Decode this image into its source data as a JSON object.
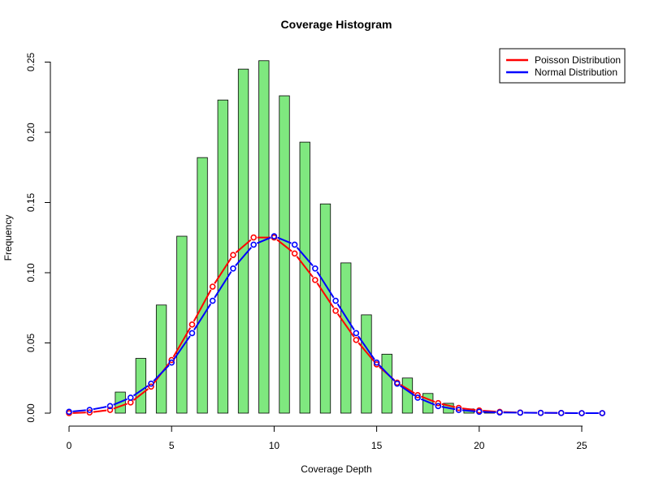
{
  "chart_data": {
    "type": "bar",
    "title": "Coverage Histogram",
    "xlabel": "Coverage Depth",
    "ylabel": "Frequency",
    "xlim": [
      0,
      26
    ],
    "ylim": [
      0,
      0.25
    ],
    "x_ticks": [
      0,
      5,
      10,
      15,
      20,
      25
    ],
    "x_tick_labels": [
      "0",
      "5",
      "10",
      "15",
      "20",
      "25"
    ],
    "y_ticks": [
      0,
      0.05,
      0.1,
      0.15,
      0.2,
      0.25
    ],
    "y_tick_labels": [
      "0.00",
      "0.05",
      "0.10",
      "0.15",
      "0.20",
      "0.25"
    ],
    "bar_color": "#7fe87f",
    "histogram": {
      "x": [
        3,
        4,
        5,
        6,
        7,
        8,
        9,
        10,
        11,
        12,
        13,
        14,
        15,
        16,
        17,
        18,
        19,
        20,
        21
      ],
      "values": [
        0.015,
        0.039,
        0.077,
        0.126,
        0.182,
        0.223,
        0.245,
        0.251,
        0.226,
        0.193,
        0.149,
        0.107,
        0.07,
        0.042,
        0.025,
        0.014,
        0.007,
        0.003,
        0.001
      ]
    },
    "series": [
      {
        "name": "Poisson Distribution",
        "color": "#ff0000",
        "x": [
          0,
          1,
          2,
          3,
          4,
          5,
          6,
          7,
          8,
          9,
          10,
          11,
          12,
          13,
          14,
          15,
          16,
          17,
          18,
          19,
          20,
          21,
          22,
          23,
          24,
          25,
          26
        ],
        "values": [
          0.0,
          0.0005,
          0.0023,
          0.0076,
          0.0189,
          0.0378,
          0.0631,
          0.0901,
          0.1126,
          0.1251,
          0.1251,
          0.1137,
          0.0948,
          0.0729,
          0.0521,
          0.0347,
          0.0217,
          0.0128,
          0.0071,
          0.0037,
          0.0019,
          0.0009,
          0.0004,
          0.0002,
          0.0001,
          0.0,
          0.0
        ]
      },
      {
        "name": "Normal Distribution",
        "color": "#0000ff",
        "x": [
          0,
          1,
          2,
          3,
          4,
          5,
          6,
          7,
          8,
          9,
          10,
          11,
          12,
          13,
          14,
          15,
          16,
          17,
          18,
          19,
          20,
          21,
          22,
          23,
          24,
          25,
          26
        ],
        "values": [
          0.001,
          0.0023,
          0.005,
          0.011,
          0.021,
          0.036,
          0.057,
          0.08,
          0.103,
          0.12,
          0.126,
          0.12,
          0.103,
          0.08,
          0.057,
          0.036,
          0.021,
          0.011,
          0.005,
          0.0023,
          0.001,
          0.0005,
          0.0003,
          0.0002,
          0.0001,
          0.0,
          0.0
        ]
      }
    ],
    "legend_position": "top-right",
    "grid": false
  }
}
